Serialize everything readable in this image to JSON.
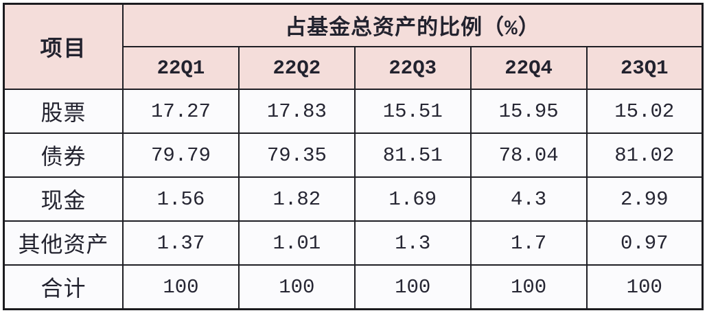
{
  "table": {
    "corner_header": "项目",
    "main_header": "占基金总资产的比例（%）",
    "quarters": [
      "22Q1",
      "22Q2",
      "22Q3",
      "22Q4",
      "23Q1"
    ],
    "rows": [
      {
        "label": "股票",
        "values": [
          "17.27",
          "17.83",
          "15.51",
          "15.95",
          "15.02"
        ]
      },
      {
        "label": "债券",
        "values": [
          "79.79",
          "79.35",
          "81.51",
          "78.04",
          "81.02"
        ]
      },
      {
        "label": "现金",
        "values": [
          "1.56",
          "1.82",
          "1.69",
          "4.3",
          "2.99"
        ]
      },
      {
        "label": "其他资产",
        "values": [
          "1.37",
          "1.01",
          "1.3",
          "1.7",
          "0.97"
        ]
      },
      {
        "label": "合计",
        "values": [
          "100",
          "100",
          "100",
          "100",
          "100"
        ]
      }
    ],
    "colors": {
      "header_bg": "#f4ddda",
      "body_bg": "#fbfbfd",
      "border": "#1e1e24",
      "text": "#22222e"
    }
  },
  "chart_data": {
    "type": "table",
    "title": "占基金总资产的比例（%）",
    "row_header": "项目",
    "categories": [
      "22Q1",
      "22Q2",
      "22Q3",
      "22Q4",
      "23Q1"
    ],
    "series": [
      {
        "name": "股票",
        "values": [
          17.27,
          17.83,
          15.51,
          15.95,
          15.02
        ]
      },
      {
        "name": "债券",
        "values": [
          79.79,
          79.35,
          81.51,
          78.04,
          81.02
        ]
      },
      {
        "name": "现金",
        "values": [
          1.56,
          1.82,
          1.69,
          4.3,
          2.99
        ]
      },
      {
        "name": "其他资产",
        "values": [
          1.37,
          1.01,
          1.3,
          1.7,
          0.97
        ]
      },
      {
        "name": "合计",
        "values": [
          100,
          100,
          100,
          100,
          100
        ]
      }
    ]
  }
}
